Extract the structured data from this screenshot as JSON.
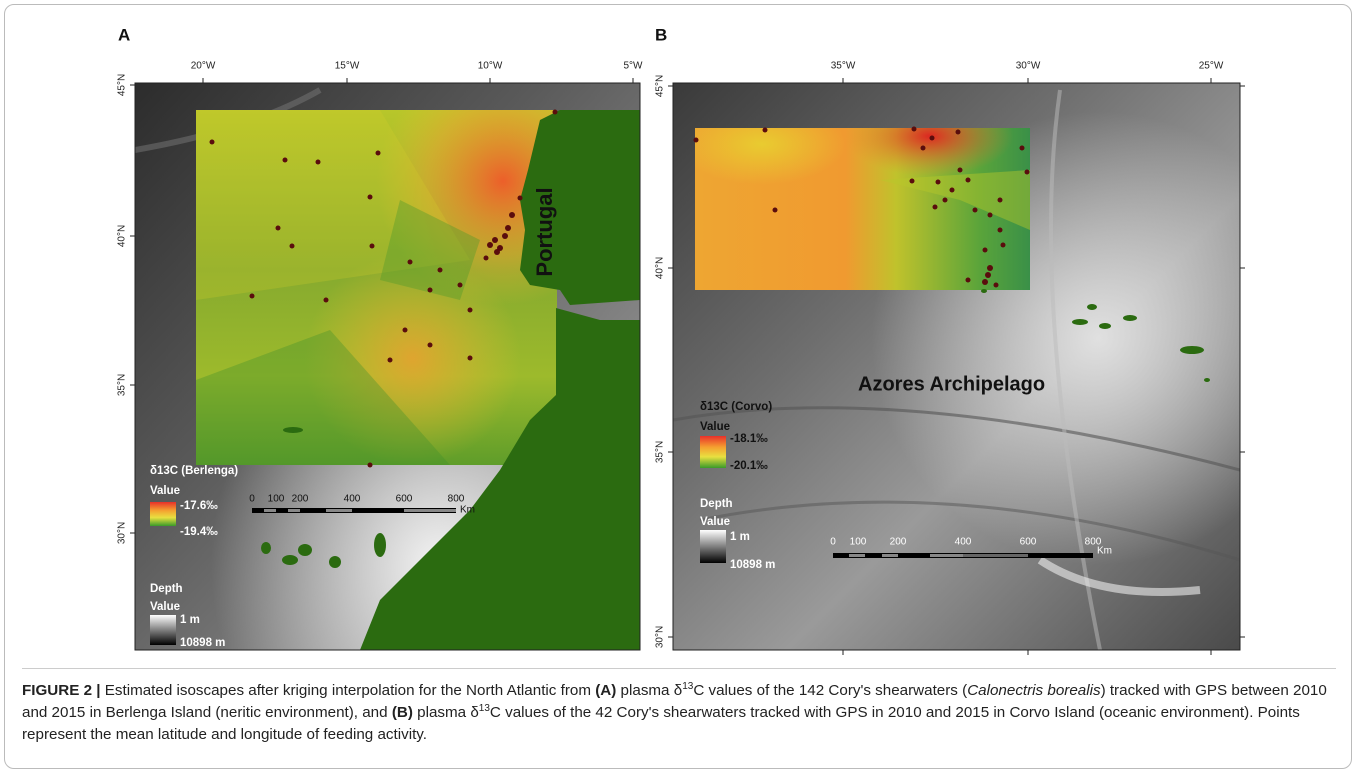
{
  "figure": {
    "panels": [
      {
        "label": "A",
        "lon_ticks": [
          "20°W",
          "15°W",
          "10°W",
          "5°W"
        ],
        "lat_ticks": [
          "45°N",
          "40°N",
          "35°N",
          "30°N"
        ],
        "place_label": "Portugal",
        "legend": {
          "title": "δ13C (Berlenga)",
          "value_heading": "Value",
          "high": "-17.6‰",
          "low": "-19.4‰",
          "depth_title": "Depth",
          "depth_value_heading": "Value",
          "depth_top": "1 m",
          "depth_bottom": "10898 m"
        },
        "scale_bar": {
          "ticks": [
            "0",
            "100",
            "200",
            "400",
            "600",
            "800"
          ],
          "unit": "Km"
        }
      },
      {
        "label": "B",
        "lon_ticks": [
          "35°W",
          "30°W",
          "25°W"
        ],
        "lat_ticks": [
          "45°N",
          "40°N",
          "35°N",
          "30°N"
        ],
        "place_label": "Azores Archipelago",
        "legend": {
          "title": "δ13C (Corvo)",
          "value_heading": "Value",
          "high": "-18.1‰",
          "low": "-20.1‰",
          "depth_title": "Depth",
          "depth_value_heading": "Value",
          "depth_top": "1 m",
          "depth_bottom": "10898 m"
        },
        "scale_bar": {
          "ticks": [
            "0",
            "100",
            "200",
            "400",
            "600",
            "800"
          ],
          "unit": "Km"
        }
      }
    ],
    "caption": [
      "FIGURE 2 |",
      "Estimated isoscapes after kriging interpolation for the North Atlantic from",
      "(A)",
      "plasma δ",
      "13",
      "C values of the 142 Cory's shearwaters (",
      "Calonectris borealis",
      ") tracked with GPS between 2010 and 2015 in Berlenga Island (neritic environment), and",
      "(B)",
      "plasma δ",
      "13",
      "C values of the 42 Cory's shearwaters tracked with GPS in 2010 and 2015 in Corvo Island (oceanic environment). Points represent the mean latitude and longitude of feeding activity."
    ]
  }
}
